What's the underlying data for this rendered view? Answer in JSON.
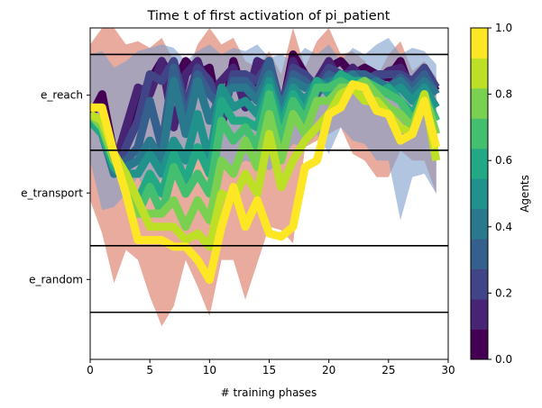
{
  "chart_data": {
    "type": "line",
    "title": "Time t of first activation of pi_patient",
    "xlabel": "# training phases",
    "ylabel": "",
    "xlim": [
      0,
      30
    ],
    "x_ticks": [
      0,
      5,
      10,
      15,
      20,
      25,
      30
    ],
    "y_ticks": [
      {
        "label": "e_reach",
        "y": 0.797
      },
      {
        "label": "e_transport",
        "y": 0.502
      },
      {
        "label": "e_random",
        "y": 0.241
      }
    ],
    "ylim": [
      0,
      1
    ],
    "hlines": [
      0.92,
      0.631,
      0.343,
      0.142
    ],
    "colorbar": {
      "label": "Agents",
      "range": [
        0,
        1
      ],
      "ticks": [
        0.0,
        0.2,
        0.4,
        0.6,
        0.8,
        1.0
      ],
      "tick_labels": [
        "0.0",
        "0.2",
        "0.4",
        "0.6",
        "0.8",
        "1.0"
      ],
      "colors": [
        "#440154",
        "#482475",
        "#414487",
        "#355f8d",
        "#2a788e",
        "#21918c",
        "#22a884",
        "#44bf70",
        "#7ad151",
        "#bddf26",
        "#fde725"
      ]
    },
    "bands": [
      {
        "color": "#d9735c",
        "alpha": 0.6,
        "upper": [
          0.95,
          1.0,
          1.0,
          0.95,
          0.96,
          0.94,
          0.97,
          0.9,
          0.85,
          0.95,
          1.0,
          0.95,
          0.97,
          0.9,
          0.88,
          0.93,
          0.86,
          1.0,
          0.88,
          0.96,
          1.0,
          0.92,
          0.93,
          0.9,
          0.85,
          0.92,
          0.96,
          0.87,
          0.9,
          0.85
        ],
        "lower": [
          0.48,
          0.38,
          0.23,
          0.33,
          0.3,
          0.19,
          0.1,
          0.16,
          0.3,
          0.22,
          0.13,
          0.3,
          0.3,
          0.18,
          0.29,
          0.4,
          0.39,
          0.35,
          0.64,
          0.66,
          0.68,
          0.7,
          0.62,
          0.6,
          0.55,
          0.55,
          0.63,
          0.6,
          0.6,
          0.5
        ]
      },
      {
        "color": "#7f9fcb",
        "alpha": 0.6,
        "upper": [
          0.92,
          0.93,
          0.88,
          0.9,
          0.93,
          0.94,
          0.95,
          0.94,
          0.9,
          0.93,
          0.95,
          0.92,
          0.94,
          0.93,
          0.95,
          0.91,
          0.92,
          0.9,
          0.94,
          0.92,
          0.95,
          0.9,
          0.94,
          0.92,
          0.95,
          0.97,
          0.92,
          0.94,
          0.93,
          0.89
        ],
        "lower": [
          0.6,
          0.45,
          0.46,
          0.5,
          0.55,
          0.49,
          0.55,
          0.55,
          0.58,
          0.6,
          0.62,
          0.6,
          0.58,
          0.6,
          0.59,
          0.57,
          0.6,
          0.65,
          0.64,
          0.68,
          0.62,
          0.7,
          0.66,
          0.65,
          0.6,
          0.6,
          0.42,
          0.55,
          0.56,
          0.5
        ]
      }
    ],
    "agent_x": [
      0,
      1,
      2,
      3,
      4,
      5,
      6,
      7,
      8,
      9,
      10,
      11,
      12,
      13,
      14,
      15,
      16,
      17,
      18,
      19,
      20,
      21,
      22,
      23,
      24,
      25,
      26,
      27,
      28,
      29
    ],
    "agents": [
      {
        "value": 0.0,
        "y": [
          0.73,
          0.8,
          0.62,
          0.64,
          0.78,
          0.84,
          0.9,
          0.83,
          0.9,
          0.86,
          0.88,
          0.7,
          0.9,
          0.78,
          0.86,
          0.9,
          0.74,
          0.92,
          0.86,
          0.8,
          0.88,
          0.9,
          0.86,
          0.88,
          0.86,
          0.85,
          0.9,
          0.8,
          0.86,
          0.81
        ]
      },
      {
        "value": 0.1,
        "y": [
          0.74,
          0.7,
          0.58,
          0.7,
          0.82,
          0.8,
          0.9,
          0.7,
          0.86,
          0.9,
          0.8,
          0.84,
          0.88,
          0.76,
          0.9,
          0.88,
          0.72,
          0.9,
          0.82,
          0.84,
          0.9,
          0.84,
          0.88,
          0.84,
          0.84,
          0.87,
          0.88,
          0.82,
          0.86,
          0.82
        ]
      },
      {
        "value": 0.2,
        "y": [
          0.73,
          0.72,
          0.56,
          0.64,
          0.72,
          0.86,
          0.84,
          0.9,
          0.76,
          0.88,
          0.84,
          0.72,
          0.86,
          0.86,
          0.84,
          0.9,
          0.76,
          0.88,
          0.86,
          0.82,
          0.88,
          0.86,
          0.86,
          0.84,
          0.86,
          0.86,
          0.86,
          0.84,
          0.88,
          0.82
        ]
      },
      {
        "value": 0.3,
        "y": [
          0.73,
          0.68,
          0.56,
          0.6,
          0.64,
          0.78,
          0.64,
          0.88,
          0.72,
          0.86,
          0.8,
          0.76,
          0.84,
          0.84,
          0.8,
          0.9,
          0.74,
          0.86,
          0.84,
          0.8,
          0.86,
          0.84,
          0.86,
          0.86,
          0.84,
          0.82,
          0.85,
          0.82,
          0.86,
          0.8
        ]
      },
      {
        "value": 0.4,
        "y": [
          0.72,
          0.68,
          0.56,
          0.58,
          0.6,
          0.66,
          0.6,
          0.84,
          0.68,
          0.84,
          0.72,
          0.8,
          0.82,
          0.82,
          0.78,
          0.86,
          0.76,
          0.84,
          0.82,
          0.82,
          0.84,
          0.84,
          0.86,
          0.82,
          0.84,
          0.82,
          0.84,
          0.8,
          0.84,
          0.8
        ]
      },
      {
        "value": 0.5,
        "y": [
          0.72,
          0.68,
          0.58,
          0.56,
          0.56,
          0.62,
          0.56,
          0.66,
          0.6,
          0.74,
          0.6,
          0.82,
          0.76,
          0.78,
          0.74,
          0.84,
          0.72,
          0.82,
          0.78,
          0.84,
          0.82,
          0.86,
          0.84,
          0.82,
          0.82,
          0.8,
          0.82,
          0.78,
          0.82,
          0.76
        ]
      },
      {
        "value": 0.6,
        "y": [
          0.72,
          0.68,
          0.58,
          0.54,
          0.48,
          0.56,
          0.5,
          0.62,
          0.54,
          0.64,
          0.56,
          0.78,
          0.72,
          0.72,
          0.7,
          0.82,
          0.7,
          0.8,
          0.74,
          0.84,
          0.8,
          0.86,
          0.84,
          0.84,
          0.8,
          0.82,
          0.78,
          0.74,
          0.8,
          0.72
        ]
      },
      {
        "value": 0.7,
        "y": [
          0.74,
          0.7,
          0.6,
          0.54,
          0.44,
          0.52,
          0.44,
          0.58,
          0.5,
          0.56,
          0.5,
          0.72,
          0.66,
          0.7,
          0.64,
          0.8,
          0.66,
          0.78,
          0.72,
          0.82,
          0.82,
          0.84,
          0.82,
          0.84,
          0.82,
          0.8,
          0.78,
          0.72,
          0.78,
          0.72
        ]
      },
      {
        "value": 0.8,
        "y": [
          0.74,
          0.7,
          0.6,
          0.56,
          0.44,
          0.44,
          0.44,
          0.48,
          0.4,
          0.48,
          0.42,
          0.6,
          0.56,
          0.66,
          0.58,
          0.74,
          0.6,
          0.74,
          0.68,
          0.78,
          0.78,
          0.82,
          0.82,
          0.84,
          0.8,
          0.76,
          0.74,
          0.7,
          0.8,
          0.68
        ]
      },
      {
        "value": 0.9,
        "y": [
          0.74,
          0.72,
          0.62,
          0.56,
          0.48,
          0.4,
          0.4,
          0.4,
          0.36,
          0.38,
          0.34,
          0.5,
          0.48,
          0.56,
          0.5,
          0.68,
          0.52,
          0.6,
          0.66,
          0.7,
          0.74,
          0.8,
          0.82,
          0.78,
          0.78,
          0.74,
          0.7,
          0.68,
          0.8,
          0.6
        ]
      },
      {
        "value": 1.0,
        "y": [
          0.76,
          0.76,
          0.62,
          0.5,
          0.36,
          0.36,
          0.36,
          0.34,
          0.34,
          0.3,
          0.24,
          0.4,
          0.52,
          0.4,
          0.48,
          0.38,
          0.37,
          0.4,
          0.58,
          0.6,
          0.74,
          0.76,
          0.83,
          0.82,
          0.75,
          0.74,
          0.66,
          0.68,
          0.78,
          0.64
        ]
      }
    ]
  }
}
